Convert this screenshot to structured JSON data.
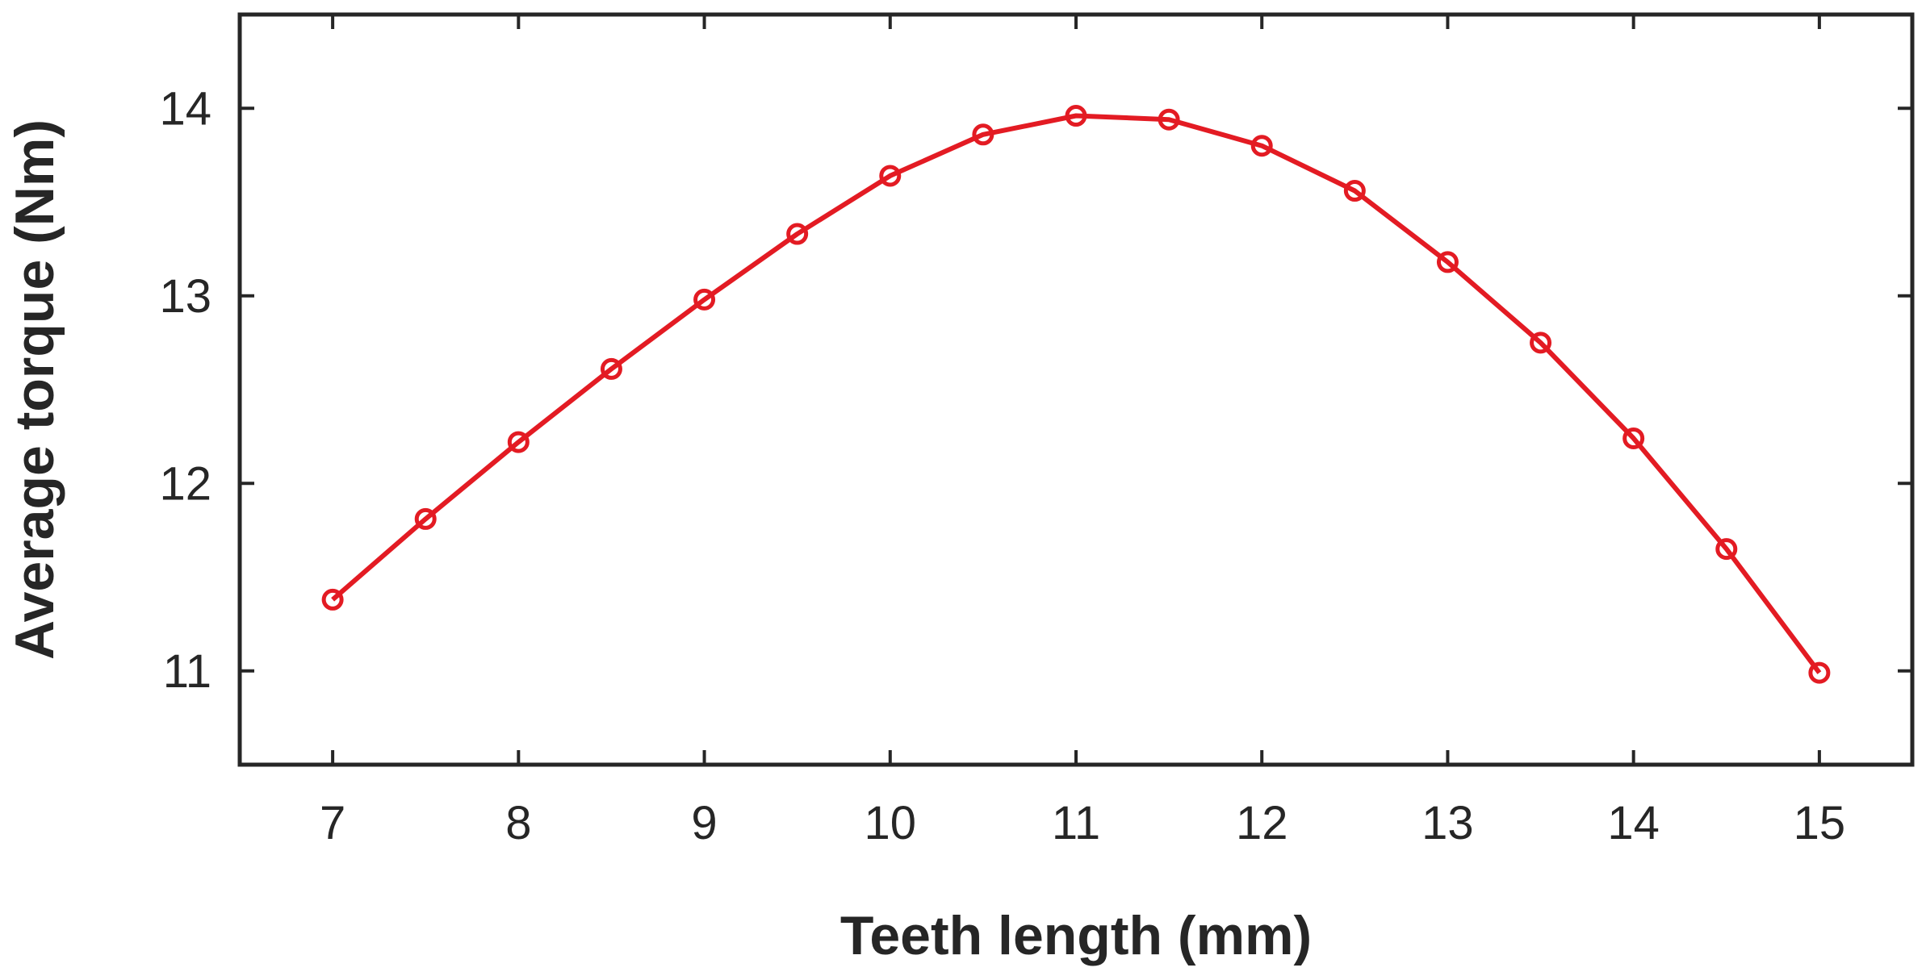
{
  "chart_data": {
    "type": "line",
    "title": "",
    "xlabel": "Teeth length (mm)",
    "ylabel": "Average torque (Nm)",
    "xlim": [
      6.5,
      15.5
    ],
    "ylim": [
      10.5,
      14.5
    ],
    "xticks": [
      7,
      8,
      9,
      10,
      11,
      12,
      13,
      14,
      15
    ],
    "yticks": [
      11,
      12,
      13,
      14
    ],
    "xtick_labels": [
      "7",
      "8",
      "9",
      "10",
      "11",
      "12",
      "13",
      "14",
      "15"
    ],
    "ytick_labels": [
      "11",
      "12",
      "13",
      "14"
    ],
    "grid": false,
    "legend": "none",
    "line_color": "#e31b23",
    "axis_color": "#262626",
    "marker": "circle",
    "series": [
      {
        "x": [
          7,
          7.5,
          8,
          8.5,
          9,
          9.5,
          10,
          10.5,
          11,
          11.5,
          12,
          12.5,
          13,
          13.5,
          14,
          14.5,
          15
        ],
        "values": [
          11.38,
          11.81,
          12.22,
          12.61,
          12.98,
          13.33,
          13.64,
          13.86,
          13.96,
          13.94,
          13.8,
          13.56,
          13.18,
          12.75,
          12.24,
          11.65,
          10.99
        ]
      }
    ]
  }
}
